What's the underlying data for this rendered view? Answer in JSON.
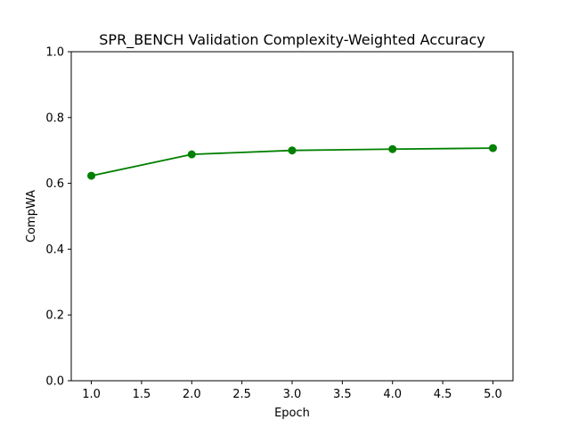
{
  "chart_data": {
    "type": "line",
    "title": "SPR_BENCH Validation Complexity-Weighted Accuracy",
    "xlabel": "Epoch",
    "ylabel": "CompWA",
    "xlim": [
      0.8,
      5.2
    ],
    "ylim": [
      0.0,
      1.0
    ],
    "xticks": [
      1.0,
      1.5,
      2.0,
      2.5,
      3.0,
      3.5,
      4.0,
      4.5,
      5.0
    ],
    "yticks": [
      0.0,
      0.2,
      0.4,
      0.6,
      0.8,
      1.0
    ],
    "grid": false,
    "legend": "none",
    "series": [
      {
        "color": "#008000",
        "marker": "circle",
        "x": [
          1.0,
          2.0,
          3.0,
          4.0,
          5.0
        ],
        "y": [
          0.623,
          0.688,
          0.7,
          0.704,
          0.707
        ]
      }
    ]
  }
}
